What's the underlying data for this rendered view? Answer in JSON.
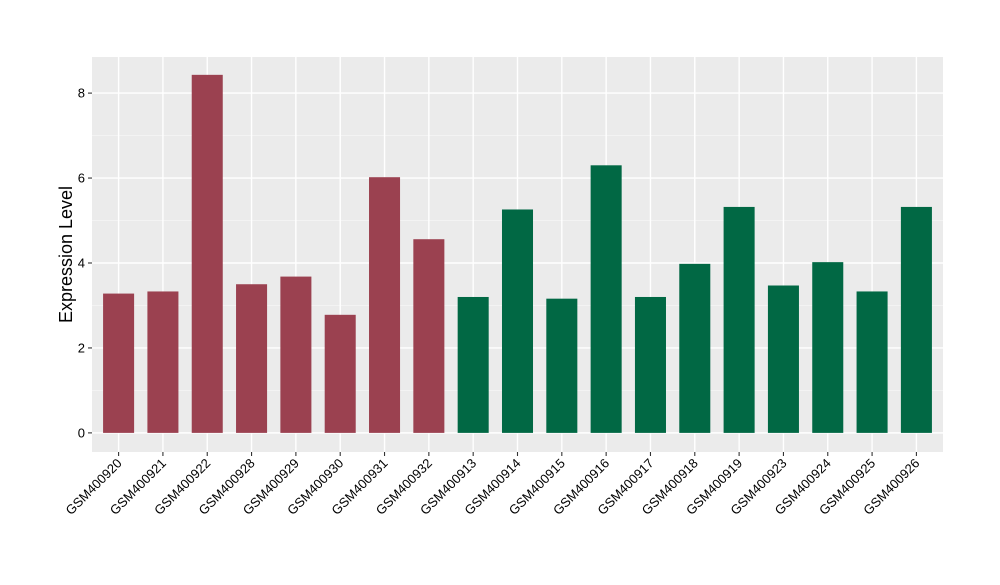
{
  "chart_data": {
    "type": "bar",
    "title": "",
    "xlabel": "",
    "ylabel": "Expression Level",
    "ylim": [
      -0.45,
      8.85
    ],
    "yticks": [
      0,
      2,
      4,
      6,
      8
    ],
    "grid": true,
    "legend": "none",
    "colors": {
      "panel_background": "#ebebeb",
      "grid_major": "#ffffff",
      "grid_minor": "#f4f4f4",
      "group_a": "#9b4150",
      "group_b": "#016844",
      "tick_text": "#000000",
      "axis_text": "#000000",
      "tick_mark": "#333333"
    },
    "bars": [
      {
        "category": "GSM400920",
        "value": 3.28,
        "group": "group_a"
      },
      {
        "category": "GSM400921",
        "value": 3.33,
        "group": "group_a"
      },
      {
        "category": "GSM400922",
        "value": 8.43,
        "group": "group_a"
      },
      {
        "category": "GSM400928",
        "value": 3.5,
        "group": "group_a"
      },
      {
        "category": "GSM400929",
        "value": 3.68,
        "group": "group_a"
      },
      {
        "category": "GSM400930",
        "value": 2.78,
        "group": "group_a"
      },
      {
        "category": "GSM400931",
        "value": 6.02,
        "group": "group_a"
      },
      {
        "category": "GSM400932",
        "value": 4.56,
        "group": "group_a"
      },
      {
        "category": "GSM400913",
        "value": 3.2,
        "group": "group_b"
      },
      {
        "category": "GSM400914",
        "value": 5.26,
        "group": "group_b"
      },
      {
        "category": "GSM400915",
        "value": 3.16,
        "group": "group_b"
      },
      {
        "category": "GSM400916",
        "value": 6.3,
        "group": "group_b"
      },
      {
        "category": "GSM400917",
        "value": 3.2,
        "group": "group_b"
      },
      {
        "category": "GSM400918",
        "value": 3.98,
        "group": "group_b"
      },
      {
        "category": "GSM400919",
        "value": 5.32,
        "group": "group_b"
      },
      {
        "category": "GSM400923",
        "value": 3.47,
        "group": "group_b"
      },
      {
        "category": "GSM400924",
        "value": 4.02,
        "group": "group_b"
      },
      {
        "category": "GSM400925",
        "value": 3.33,
        "group": "group_b"
      },
      {
        "category": "GSM400926",
        "value": 5.32,
        "group": "group_b"
      }
    ]
  }
}
